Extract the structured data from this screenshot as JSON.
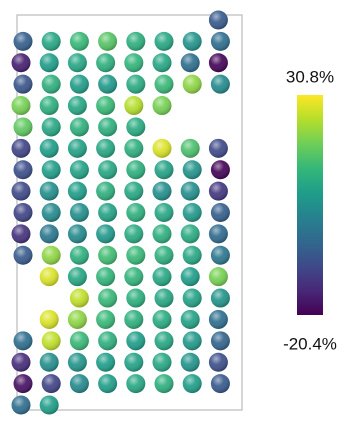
{
  "chart_data": {
    "type": "heatmap",
    "colormap": "viridis",
    "zlim": [
      -20.4,
      30.8
    ],
    "cticks": [
      {
        "value": 30.8,
        "label": "30.8%"
      },
      {
        "value": -20.4,
        "label": "-20.4%"
      }
    ],
    "values": [
      [
        null,
        null,
        null,
        null,
        null,
        null,
        null,
        -6
      ],
      [
        -5,
        10,
        14,
        17,
        12,
        10,
        6,
        -2
      ],
      [
        -16,
        8,
        10,
        12,
        13,
        10,
        -2,
        -20
      ],
      [
        -7,
        12,
        8,
        7,
        11,
        14,
        22,
        4
      ],
      [
        20,
        12,
        10,
        14,
        25,
        20,
        null,
        null
      ],
      [
        18,
        10,
        12,
        12,
        11,
        null,
        null,
        null
      ],
      [
        -10,
        8,
        9,
        10,
        12,
        28,
        16,
        -9
      ],
      [
        -8,
        8,
        9,
        10,
        12,
        9,
        6,
        -20
      ],
      [
        -9,
        5,
        8,
        12,
        10,
        5,
        5,
        -12
      ],
      [
        -10,
        4,
        5,
        9,
        12,
        10,
        7,
        -5
      ],
      [
        -13,
        0,
        4,
        7,
        11,
        12,
        11,
        -3
      ],
      [
        -6,
        22,
        12,
        15,
        14,
        12,
        10,
        0
      ],
      [
        null,
        28,
        10,
        13,
        13,
        10,
        8,
        20
      ],
      [
        null,
        null,
        26,
        14,
        12,
        10,
        9,
        6
      ],
      [
        null,
        28,
        22,
        14,
        12,
        11,
        9,
        -2
      ],
      [
        -2,
        26,
        14,
        12,
        8,
        10,
        7,
        -4
      ],
      [
        -14,
        5,
        6,
        8,
        9,
        10,
        6,
        -8
      ],
      [
        -18,
        -10,
        4,
        8,
        10,
        12,
        8,
        -6
      ],
      [
        -2,
        8,
        null,
        null,
        null,
        null,
        null,
        null
      ]
    ]
  }
}
